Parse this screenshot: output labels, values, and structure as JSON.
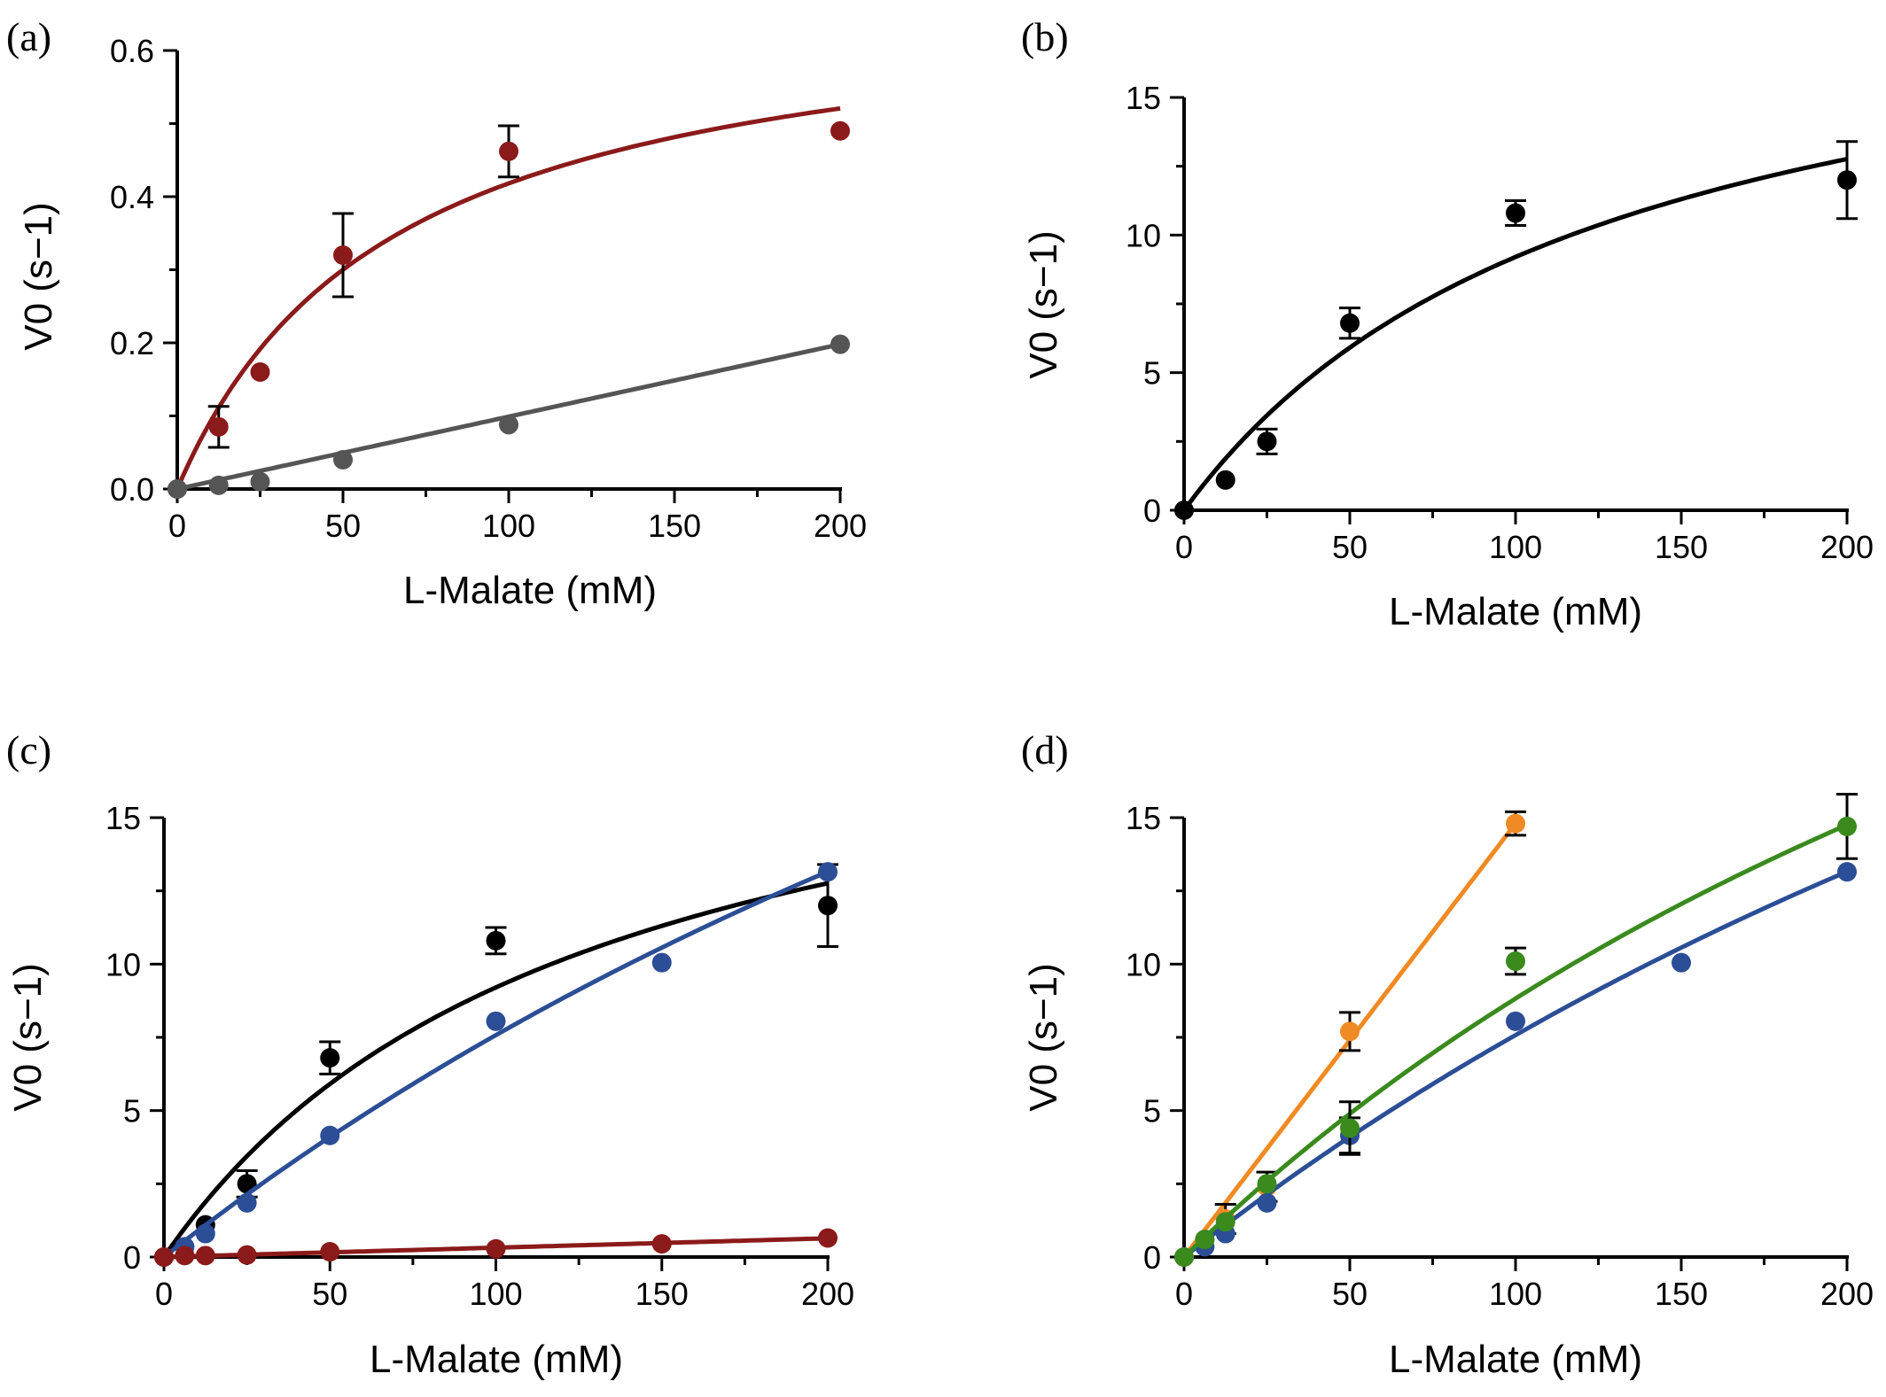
{
  "chart_data": [
    {
      "panel_label": "(a)",
      "type": "scatter",
      "xlabel": "L-Malate (mM)",
      "ylabel": "V0 (s−1)",
      "xlim": [
        0,
        200
      ],
      "ylim": [
        0,
        0.6
      ],
      "xticks": [
        0,
        50,
        100,
        150,
        200
      ],
      "yticks": [
        0,
        0.2,
        0.4,
        0.6
      ],
      "yticklabels": [
        "0.0",
        "0.2",
        "0.4",
        "0.6"
      ],
      "series": [
        {
          "color": "#8b1a1a",
          "x": [
            0,
            12.5,
            25,
            50,
            100,
            200
          ],
          "y": [
            0,
            0.085,
            0.16,
            0.32,
            0.462,
            0.49
          ],
          "err": [
            0,
            0.028,
            0,
            0.057,
            0.035,
            0
          ],
          "fit": {
            "model": "michaelis-menten",
            "vmax": 0.69,
            "km": 65
          }
        },
        {
          "color": "#555555",
          "x": [
            0,
            12.5,
            25,
            50,
            100,
            200
          ],
          "y": [
            0,
            0.005,
            0.01,
            0.04,
            0.088,
            0.198
          ],
          "err": [
            0,
            0,
            0,
            0,
            0,
            0
          ],
          "fit": {
            "model": "linear",
            "slope": 0.00099
          }
        }
      ]
    },
    {
      "panel_label": "(b)",
      "type": "scatter",
      "xlabel": "L-Malate (mM)",
      "ylabel": "V0 (s−1)",
      "xlim": [
        0,
        200
      ],
      "ylim": [
        0,
        15
      ],
      "xticks": [
        0,
        50,
        100,
        150,
        200
      ],
      "yticks": [
        0,
        5,
        10,
        15
      ],
      "yticklabels": [
        "0",
        "5",
        "10",
        "15"
      ],
      "series": [
        {
          "color": "#000000",
          "x": [
            0,
            12.5,
            25,
            50,
            100,
            200
          ],
          "y": [
            0,
            1.1,
            2.5,
            6.8,
            10.8,
            12.0
          ],
          "err": [
            0,
            0,
            0.45,
            0.55,
            0.45,
            1.4
          ],
          "fit": {
            "model": "michaelis-menten",
            "vmax": 20.8,
            "km": 126
          }
        }
      ]
    },
    {
      "panel_label": "(c)",
      "type": "scatter",
      "xlabel": "L-Malate (mM)",
      "ylabel": "V0 (s−1)",
      "xlim": [
        0,
        200
      ],
      "ylim": [
        0,
        15
      ],
      "xticks": [
        0,
        50,
        100,
        150,
        200
      ],
      "yticks": [
        0,
        5,
        10,
        15
      ],
      "yticklabels": [
        "0",
        "5",
        "10",
        "15"
      ],
      "series": [
        {
          "color": "#000000",
          "x": [
            0,
            12.5,
            25,
            50,
            100,
            200
          ],
          "y": [
            0,
            1.1,
            2.5,
            6.8,
            10.8,
            12.0
          ],
          "err": [
            0,
            0,
            0.45,
            0.55,
            0.45,
            1.4
          ],
          "fit": {
            "model": "michaelis-menten",
            "vmax": 20.8,
            "km": 126
          }
        },
        {
          "color": "#2b4e96",
          "x": [
            0,
            6.25,
            12.5,
            25,
            50,
            100,
            150,
            200
          ],
          "y": [
            0,
            0.35,
            0.8,
            1.85,
            4.15,
            8.05,
            10.05,
            13.15
          ],
          "err": [
            0,
            0,
            0,
            0,
            0,
            0,
            0,
            0
          ],
          "fit": {
            "model": "michaelis-menten",
            "vmax": 50,
            "km": 560
          }
        },
        {
          "color": "#8b1a1a",
          "x": [
            0,
            6.25,
            12.5,
            25,
            50,
            100,
            150,
            200
          ],
          "y": [
            0,
            0.05,
            0.05,
            0.07,
            0.18,
            0.28,
            0.45,
            0.65
          ],
          "err": [
            0,
            0,
            0,
            0,
            0,
            0,
            0,
            0
          ],
          "fit": {
            "model": "linear",
            "slope": 0.0032
          }
        }
      ]
    },
    {
      "panel_label": "(d)",
      "type": "scatter",
      "xlabel": "L-Malate (mM)",
      "ylabel": "V0 (s−1)",
      "xlim": [
        0,
        200
      ],
      "ylim": [
        0,
        15
      ],
      "xticks": [
        0,
        50,
        100,
        150,
        200
      ],
      "yticks": [
        0,
        5,
        10,
        15
      ],
      "yticklabels": [
        "0",
        "5",
        "10",
        "15"
      ],
      "series": [
        {
          "color": "#f08a24",
          "x": [
            0,
            6.25,
            12.5,
            25,
            50,
            100
          ],
          "y": [
            0,
            0.6,
            1.3,
            2.4,
            7.7,
            14.8
          ],
          "err": [
            0,
            0,
            0.5,
            0.5,
            0.65,
            0.4
          ],
          "fit": {
            "model": "linear",
            "slope": 0.148,
            "xmax": 100
          }
        },
        {
          "color": "#2b4e96",
          "x": [
            0,
            6.25,
            12.5,
            25,
            50,
            100,
            150,
            200
          ],
          "y": [
            0,
            0.35,
            0.8,
            1.85,
            4.15,
            8.05,
            10.05,
            13.15
          ],
          "err": [
            0,
            0,
            0,
            0,
            0.6,
            0,
            0,
            0
          ],
          "fit": {
            "model": "michaelis-menten",
            "vmax": 50,
            "km": 560
          }
        },
        {
          "color": "#3a8a1e",
          "x": [
            0,
            6.25,
            12.5,
            25,
            50,
            100,
            200
          ],
          "y": [
            0,
            0.6,
            1.2,
            2.5,
            4.4,
            10.1,
            14.7
          ],
          "err": [
            0,
            0,
            0,
            0,
            0.9,
            0.45,
            1.1
          ],
          "fit": {
            "model": "michaelis-menten",
            "vmax": 45,
            "km": 410
          }
        }
      ]
    }
  ]
}
